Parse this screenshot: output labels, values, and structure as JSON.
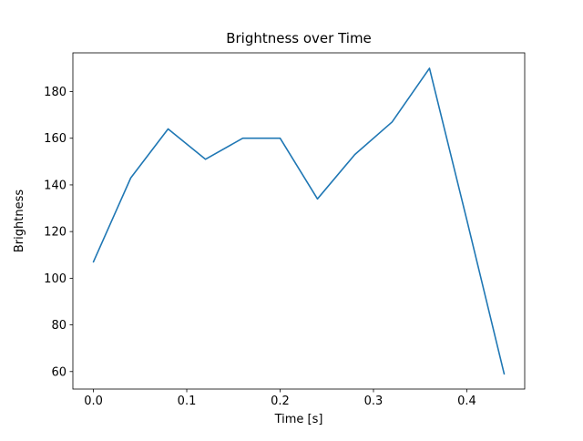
{
  "chart_data": {
    "type": "line",
    "title": "Brightness over Time",
    "xlabel": "Time [s]",
    "ylabel": "Brightness",
    "x": [
      0.0,
      0.04,
      0.08,
      0.12,
      0.16,
      0.2,
      0.24,
      0.28,
      0.32,
      0.36,
      0.4,
      0.44
    ],
    "y": [
      107,
      143,
      164,
      151,
      160,
      160,
      134,
      153,
      167,
      190,
      125,
      59
    ],
    "xlim": [
      -0.022,
      0.462
    ],
    "ylim": [
      52.5,
      196.6
    ],
    "xticks": [
      0.0,
      0.1,
      0.2,
      0.3,
      0.4
    ],
    "xtick_labels": [
      "0.0",
      "0.1",
      "0.2",
      "0.3",
      "0.4"
    ],
    "yticks": [
      60,
      80,
      100,
      120,
      140,
      160,
      180
    ],
    "line_color": "#1f77b4",
    "background": "#ffffff",
    "grid": false,
    "legend": "none"
  }
}
